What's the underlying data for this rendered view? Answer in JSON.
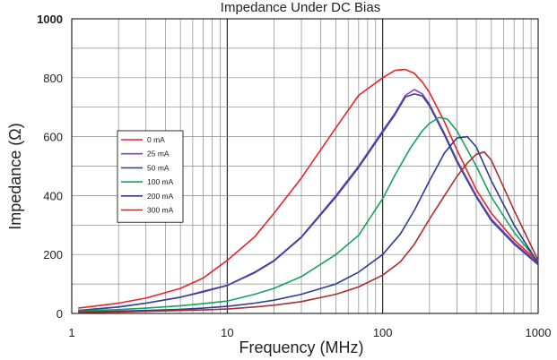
{
  "chart_data": {
    "type": "line",
    "title": "Impedance Under DC Bias",
    "xlabel": "Frequency (MHz)",
    "ylabel": "Impedance (Ω)",
    "x_scale": "log",
    "xlim": [
      1,
      1000
    ],
    "ylim": [
      0,
      1000
    ],
    "x_tick_labels": [
      "1",
      "10",
      "100",
      "1000"
    ],
    "y_tick_labels": [
      "0",
      "200",
      "400",
      "600",
      "800",
      "1000"
    ],
    "grid": true,
    "legend_position": "left",
    "series": [
      {
        "name": "0 mA",
        "color": "#e8242b",
        "x": [
          1.1,
          2,
          3,
          5,
          7,
          10,
          15,
          20,
          30,
          50,
          70,
          100,
          120,
          140,
          160,
          180,
          200,
          250,
          300,
          400,
          500,
          700,
          1000
        ],
        "y": [
          18,
          35,
          52,
          85,
          120,
          180,
          260,
          340,
          460,
          630,
          740,
          800,
          825,
          828,
          815,
          785,
          750,
          650,
          555,
          420,
          340,
          250,
          175
        ]
      },
      {
        "name": "25 mA",
        "color": "#8b3fb6",
        "x": [
          1.1,
          2,
          3,
          5,
          7,
          10,
          15,
          20,
          30,
          50,
          70,
          100,
          120,
          140,
          160,
          180,
          200,
          250,
          300,
          400,
          500,
          700,
          1000
        ],
        "y": [
          10,
          22,
          35,
          55,
          75,
          95,
          140,
          180,
          260,
          400,
          500,
          620,
          680,
          740,
          760,
          745,
          710,
          610,
          520,
          400,
          320,
          240,
          170
        ]
      },
      {
        "name": "50 mA",
        "color": "#33449a",
        "x": [
          1.1,
          2,
          3,
          5,
          7,
          10,
          15,
          20,
          30,
          50,
          70,
          100,
          120,
          140,
          160,
          180,
          200,
          250,
          300,
          400,
          500,
          700,
          1000
        ],
        "y": [
          10,
          22,
          35,
          55,
          73,
          95,
          138,
          178,
          258,
          395,
          495,
          615,
          675,
          735,
          745,
          738,
          705,
          605,
          515,
          395,
          315,
          235,
          165
        ]
      },
      {
        "name": "100 mA",
        "color": "#16a35a",
        "x": [
          1.1,
          2,
          3,
          5,
          7,
          10,
          15,
          20,
          30,
          50,
          70,
          100,
          120,
          150,
          180,
          200,
          230,
          260,
          300,
          400,
          500,
          700,
          1000
        ],
        "y": [
          8,
          13,
          18,
          26,
          33,
          42,
          65,
          85,
          125,
          200,
          265,
          390,
          470,
          560,
          620,
          645,
          665,
          660,
          620,
          500,
          395,
          275,
          175
        ]
      },
      {
        "name": "200 mA",
        "color": "#2f3b90",
        "x": [
          1.1,
          2,
          3,
          5,
          7,
          10,
          15,
          20,
          30,
          50,
          70,
          100,
          130,
          160,
          200,
          250,
          300,
          350,
          400,
          500,
          700,
          1000
        ],
        "y": [
          5,
          8,
          10,
          14,
          18,
          24,
          35,
          45,
          65,
          100,
          140,
          200,
          270,
          350,
          450,
          545,
          595,
          600,
          565,
          450,
          300,
          170
        ]
      },
      {
        "name": "300 mA",
        "color": "#a8302f",
        "x": [
          1.1,
          2,
          3,
          5,
          7,
          10,
          15,
          20,
          30,
          50,
          70,
          100,
          130,
          160,
          200,
          250,
          300,
          350,
          400,
          450,
          500,
          700,
          1000
        ],
        "y": [
          3,
          5,
          7,
          10,
          12,
          15,
          22,
          28,
          40,
          65,
          90,
          130,
          175,
          235,
          320,
          400,
          465,
          510,
          540,
          548,
          520,
          350,
          180
        ]
      }
    ]
  }
}
